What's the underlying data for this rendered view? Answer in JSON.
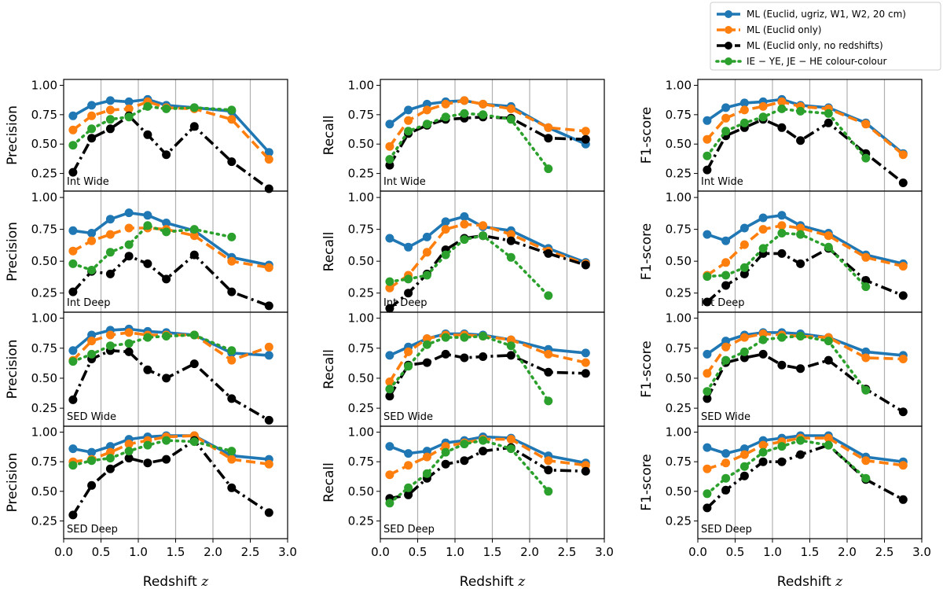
{
  "chart_data": {
    "type": "line",
    "layout": "4 rows x 3 columns, shared x-axis per column",
    "x": [
      0.125,
      0.375,
      0.625,
      0.875,
      1.125,
      1.375,
      1.75,
      2.25,
      2.75
    ],
    "xlim": [
      0,
      3
    ],
    "ylim": [
      0.1,
      1.05
    ],
    "xticks": [
      "0.0",
      "0.5",
      "1.0",
      "1.5",
      "2.0",
      "2.5",
      "3.0"
    ],
    "yticks": [
      "0.25",
      "0.50",
      "0.75",
      "1.00"
    ],
    "xlabel": "Redshift",
    "xlabel_symbol": "z",
    "columns": [
      "Precision",
      "Recall",
      "F1-score"
    ],
    "rows": [
      "Int Wide",
      "Int Deep",
      "SED Wide",
      "SED Deep"
    ],
    "vertical_gridlines_at": [
      0.5,
      1.0,
      1.5,
      2.0,
      2.5
    ],
    "legend": {
      "placement": "top-right",
      "entries": [
        {
          "id": "ml_all",
          "label": "ML (Euclid, ugriz, W1, W2, 20 cm)",
          "color": "#1f77b4",
          "style": "solid"
        },
        {
          "id": "ml_euclid",
          "label": "ML (Euclid only)",
          "color": "#ff7f0e",
          "style": "dashed"
        },
        {
          "id": "ml_noz",
          "label": "ML (Euclid only, no redshifts)",
          "color": "#000000",
          "style": "dashdot"
        },
        {
          "id": "cc",
          "label": "IE − YE, JE − HE colour-colour",
          "color": "#2ca02c",
          "style": "dotted"
        }
      ]
    },
    "panels": [
      {
        "row": "Int Wide",
        "metric": "Precision",
        "series": {
          "ml_all": [
            0.74,
            0.83,
            0.87,
            0.86,
            0.88,
            0.83,
            0.81,
            0.78,
            0.43
          ],
          "ml_euclid": [
            0.62,
            0.74,
            0.79,
            0.8,
            0.86,
            0.81,
            0.8,
            0.71,
            0.37
          ],
          "ml_noz": [
            0.26,
            0.55,
            0.63,
            0.74,
            0.58,
            0.41,
            0.65,
            0.35,
            0.12
          ],
          "cc": [
            0.49,
            0.63,
            0.71,
            0.73,
            0.82,
            0.8,
            0.81,
            0.79,
            null
          ]
        }
      },
      {
        "row": "Int Wide",
        "metric": "Recall",
        "series": {
          "ml_all": [
            0.67,
            0.79,
            0.84,
            0.86,
            0.87,
            0.84,
            0.82,
            0.64,
            0.5
          ],
          "ml_euclid": [
            0.48,
            0.7,
            0.79,
            0.84,
            0.87,
            0.84,
            0.8,
            0.64,
            0.61
          ],
          "ml_noz": [
            0.32,
            0.59,
            0.66,
            0.71,
            0.72,
            0.73,
            0.72,
            0.55,
            0.54
          ],
          "cc": [
            0.37,
            0.61,
            0.67,
            0.73,
            0.76,
            0.75,
            0.71,
            0.29,
            null
          ]
        }
      },
      {
        "row": "Int Wide",
        "metric": "F1-score",
        "series": {
          "ml_all": [
            0.7,
            0.81,
            0.85,
            0.86,
            0.88,
            0.83,
            0.81,
            0.68,
            0.42
          ],
          "ml_euclid": [
            0.54,
            0.72,
            0.79,
            0.82,
            0.86,
            0.82,
            0.8,
            0.67,
            0.41
          ],
          "ml_noz": [
            0.28,
            0.57,
            0.64,
            0.71,
            0.64,
            0.53,
            0.68,
            0.42,
            0.17
          ],
          "cc": [
            0.4,
            0.61,
            0.68,
            0.73,
            0.8,
            0.78,
            0.76,
            0.38,
            null
          ]
        }
      },
      {
        "row": "Int Deep",
        "metric": "Precision",
        "series": {
          "ml_all": [
            0.74,
            0.72,
            0.83,
            0.88,
            0.86,
            0.8,
            0.74,
            0.53,
            0.47
          ],
          "ml_euclid": [
            0.58,
            0.66,
            0.71,
            0.76,
            0.76,
            0.75,
            0.7,
            0.5,
            0.45
          ],
          "ml_noz": [
            0.26,
            0.42,
            0.4,
            0.54,
            0.48,
            0.36,
            0.55,
            0.26,
            0.15
          ],
          "cc": [
            0.48,
            0.43,
            0.57,
            0.63,
            0.78,
            0.73,
            0.75,
            0.69,
            null
          ]
        }
      },
      {
        "row": "Int Deep",
        "metric": "Recall",
        "series": {
          "ml_all": [
            0.68,
            0.61,
            0.69,
            0.81,
            0.85,
            0.77,
            0.74,
            0.6,
            0.49
          ],
          "ml_euclid": [
            0.29,
            0.39,
            0.57,
            0.75,
            0.79,
            0.78,
            0.71,
            0.58,
            0.48
          ],
          "ml_noz": [
            0.13,
            0.25,
            0.4,
            0.59,
            0.68,
            0.7,
            0.66,
            0.56,
            0.47
          ],
          "cc": [
            0.34,
            0.36,
            0.39,
            0.55,
            0.67,
            0.7,
            0.53,
            0.23,
            null
          ]
        }
      },
      {
        "row": "Int Deep",
        "metric": "F1-score",
        "series": {
          "ml_all": [
            0.71,
            0.66,
            0.76,
            0.84,
            0.86,
            0.78,
            0.72,
            0.55,
            0.48
          ],
          "ml_euclid": [
            0.39,
            0.49,
            0.63,
            0.75,
            0.78,
            0.76,
            0.7,
            0.53,
            0.46
          ],
          "ml_noz": [
            0.18,
            0.31,
            0.4,
            0.56,
            0.56,
            0.48,
            0.6,
            0.35,
            0.23
          ],
          "cc": [
            0.38,
            0.39,
            0.45,
            0.6,
            0.72,
            0.71,
            0.61,
            0.3,
            null
          ]
        }
      },
      {
        "row": "SED Wide",
        "metric": "Precision",
        "series": {
          "ml_all": [
            0.73,
            0.86,
            0.9,
            0.91,
            0.89,
            0.88,
            0.86,
            0.71,
            0.69
          ],
          "ml_euclid": [
            0.65,
            0.81,
            0.86,
            0.88,
            0.86,
            0.86,
            0.86,
            0.65,
            0.76
          ],
          "ml_noz": [
            0.32,
            0.66,
            0.73,
            0.72,
            0.57,
            0.5,
            0.62,
            0.33,
            0.15
          ],
          "cc": [
            0.64,
            0.7,
            0.77,
            0.79,
            0.84,
            0.85,
            0.86,
            0.73,
            null
          ]
        }
      },
      {
        "row": "SED Wide",
        "metric": "Recall",
        "series": {
          "ml_all": [
            0.69,
            0.76,
            0.83,
            0.87,
            0.87,
            0.86,
            0.82,
            0.74,
            0.71
          ],
          "ml_euclid": [
            0.47,
            0.72,
            0.83,
            0.86,
            0.86,
            0.85,
            0.82,
            0.7,
            0.63
          ],
          "ml_noz": [
            0.35,
            0.61,
            0.63,
            0.7,
            0.67,
            0.68,
            0.69,
            0.55,
            0.54
          ],
          "cc": [
            0.41,
            0.6,
            0.78,
            0.84,
            0.84,
            0.85,
            0.77,
            0.31,
            null
          ]
        }
      },
      {
        "row": "SED Wide",
        "metric": "F1-score",
        "series": {
          "ml_all": [
            0.7,
            0.81,
            0.86,
            0.88,
            0.88,
            0.87,
            0.84,
            0.72,
            0.69
          ],
          "ml_euclid": [
            0.54,
            0.76,
            0.84,
            0.87,
            0.86,
            0.85,
            0.84,
            0.67,
            0.66
          ],
          "ml_noz": [
            0.33,
            0.63,
            0.67,
            0.7,
            0.61,
            0.58,
            0.65,
            0.41,
            0.22
          ],
          "cc": [
            0.39,
            0.65,
            0.72,
            0.82,
            0.84,
            0.85,
            0.81,
            0.4,
            null
          ]
        }
      },
      {
        "row": "SED Deep",
        "metric": "Precision",
        "series": {
          "ml_all": [
            0.86,
            0.83,
            0.88,
            0.94,
            0.96,
            0.97,
            0.97,
            0.8,
            0.77
          ],
          "ml_euclid": [
            0.75,
            0.77,
            0.83,
            0.9,
            0.93,
            0.96,
            0.97,
            0.77,
            0.73
          ],
          "ml_noz": [
            0.3,
            0.55,
            0.69,
            0.78,
            0.74,
            0.77,
            0.93,
            0.53,
            0.32
          ],
          "cc": [
            0.72,
            0.76,
            0.78,
            0.84,
            0.89,
            0.93,
            0.92,
            0.84,
            null
          ]
        }
      },
      {
        "row": "SED Deep",
        "metric": "Recall",
        "series": {
          "ml_all": [
            0.88,
            0.82,
            0.84,
            0.91,
            0.93,
            0.96,
            0.95,
            0.8,
            0.74
          ],
          "ml_euclid": [
            0.64,
            0.72,
            0.79,
            0.88,
            0.91,
            0.94,
            0.94,
            0.76,
            0.72
          ],
          "ml_noz": [
            0.44,
            0.47,
            0.61,
            0.73,
            0.76,
            0.84,
            0.87,
            0.68,
            0.67
          ],
          "cc": [
            0.4,
            0.53,
            0.65,
            0.83,
            0.9,
            0.93,
            0.86,
            0.5,
            null
          ]
        }
      },
      {
        "row": "SED Deep",
        "metric": "F1-score",
        "series": {
          "ml_all": [
            0.87,
            0.82,
            0.86,
            0.93,
            0.95,
            0.97,
            0.97,
            0.79,
            0.75
          ],
          "ml_euclid": [
            0.69,
            0.74,
            0.81,
            0.89,
            0.92,
            0.95,
            0.95,
            0.76,
            0.72
          ],
          "ml_noz": [
            0.36,
            0.51,
            0.63,
            0.75,
            0.75,
            0.81,
            0.89,
            0.6,
            0.43
          ],
          "cc": [
            0.48,
            0.61,
            0.71,
            0.83,
            0.88,
            0.93,
            0.89,
            0.61,
            null
          ]
        }
      }
    ]
  }
}
